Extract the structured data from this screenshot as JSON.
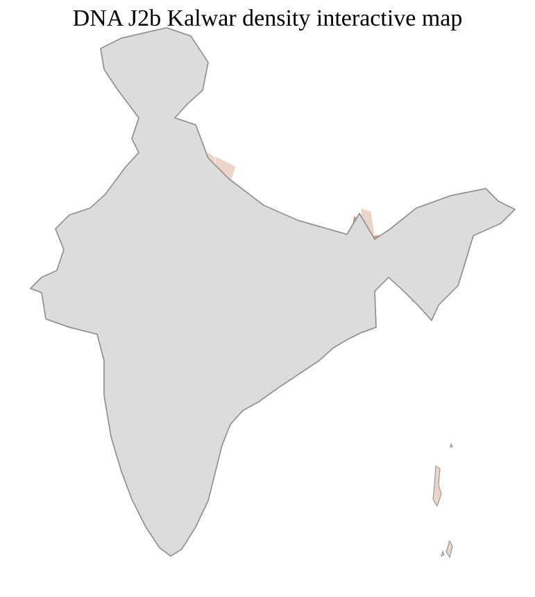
{
  "title": "DNA J2b Kalwar density interactive map",
  "map": {
    "type": "choropleth",
    "region": "India districts",
    "legend": "none",
    "colors": {
      "no_data": "#dcdcdc",
      "level_1": "#ecd5c8",
      "level_2": "#d39a80",
      "level_3": "#b9613f",
      "level_4": "#9a2e00",
      "border": "#8a8a8a",
      "district_border": "#ffffff"
    }
  }
}
